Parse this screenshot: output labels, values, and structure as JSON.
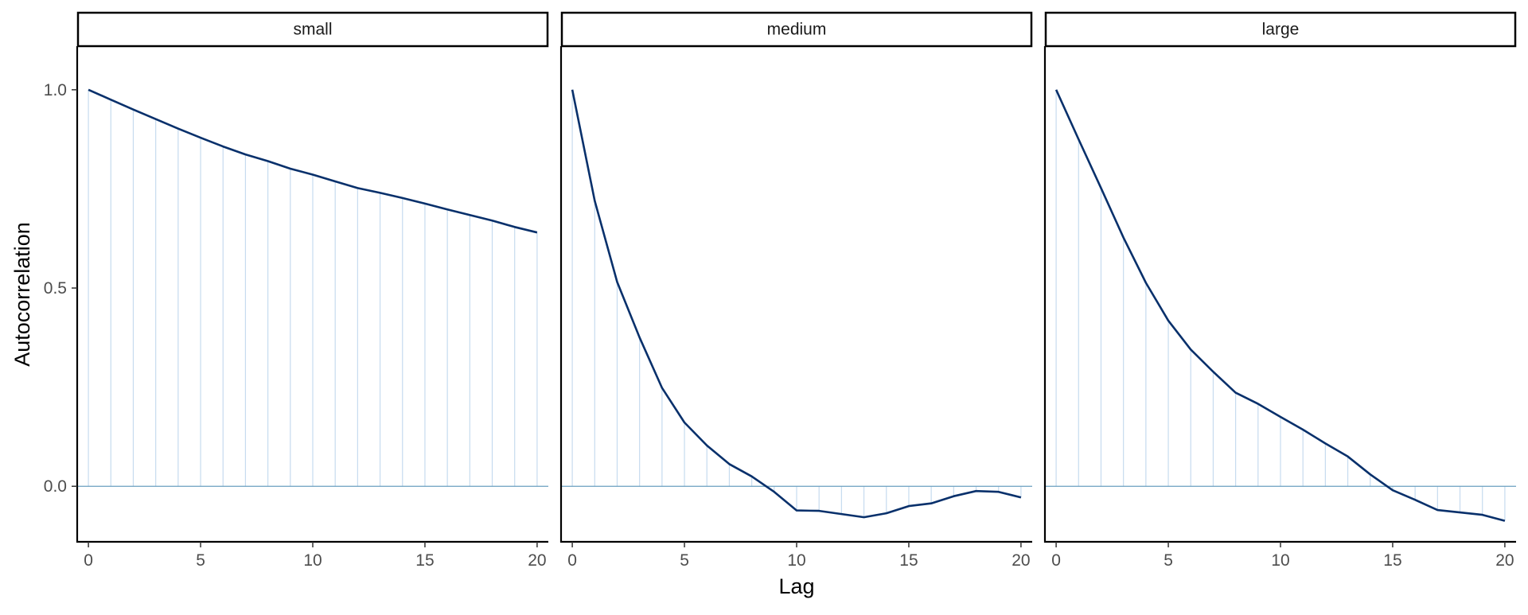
{
  "chart_data": {
    "type": "line",
    "xlabel": "Lag",
    "ylabel": "Autocorrelation",
    "xlim": [
      -0.5,
      20.5
    ],
    "ylim": [
      -0.14,
      1.11
    ],
    "x_ticks": [
      0,
      5,
      10,
      15,
      20
    ],
    "x_tick_labels": [
      "0",
      "5",
      "10",
      "15",
      "20"
    ],
    "y_ticks": [
      0.0,
      0.5,
      1.0
    ],
    "y_tick_labels": [
      "0.0",
      "0.5",
      "1.0"
    ],
    "zero_line": true,
    "grid": false,
    "colors": {
      "line": "#08306b",
      "stems": "#c6dbef",
      "zero_line": "#6a9fbf",
      "axis": "#000000",
      "strip_border": "#000000"
    },
    "x": [
      0,
      1,
      2,
      3,
      4,
      5,
      6,
      7,
      8,
      9,
      10,
      11,
      12,
      13,
      14,
      15,
      16,
      17,
      18,
      19,
      20
    ],
    "panels": [
      {
        "name": "small",
        "values": [
          1.0,
          0.975,
          0.95,
          0.926,
          0.902,
          0.879,
          0.857,
          0.837,
          0.82,
          0.801,
          0.786,
          0.769,
          0.752,
          0.74,
          0.727,
          0.713,
          0.698,
          0.684,
          0.67,
          0.654,
          0.64
        ]
      },
      {
        "name": "medium",
        "values": [
          1.0,
          0.72,
          0.515,
          0.375,
          0.248,
          0.161,
          0.103,
          0.056,
          0.025,
          -0.014,
          -0.061,
          -0.062,
          -0.07,
          -0.078,
          -0.068,
          -0.05,
          -0.043,
          -0.025,
          -0.012,
          -0.014,
          -0.028
        ]
      },
      {
        "name": "large",
        "values": [
          1.0,
          0.875,
          0.752,
          0.627,
          0.513,
          0.418,
          0.345,
          0.289,
          0.236,
          0.208,
          0.175,
          0.143,
          0.108,
          0.075,
          0.03,
          -0.01,
          -0.034,
          -0.06,
          -0.066,
          -0.072,
          -0.087
        ]
      }
    ]
  }
}
